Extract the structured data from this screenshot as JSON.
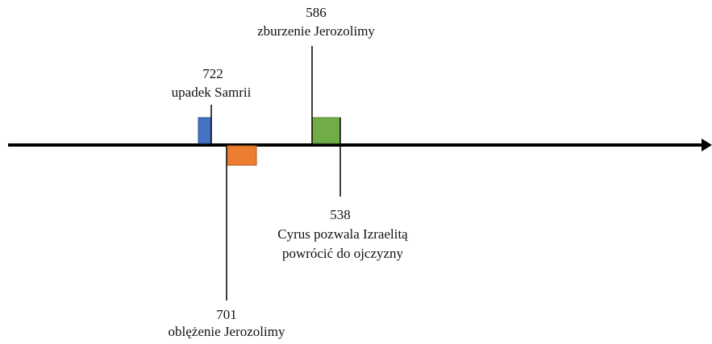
{
  "events": [
    {
      "year": "722",
      "label": [
        "upadek Samrii"
      ]
    },
    {
      "year": "701",
      "label": [
        "oblężenie Jerozolimy"
      ]
    },
    {
      "year": "586",
      "label": [
        "zburzenie Jerozolimy"
      ]
    },
    {
      "year": "538",
      "label": [
        "Cyrus pozwala Izraelitą",
        "powrócić do ojczyzny"
      ]
    }
  ]
}
